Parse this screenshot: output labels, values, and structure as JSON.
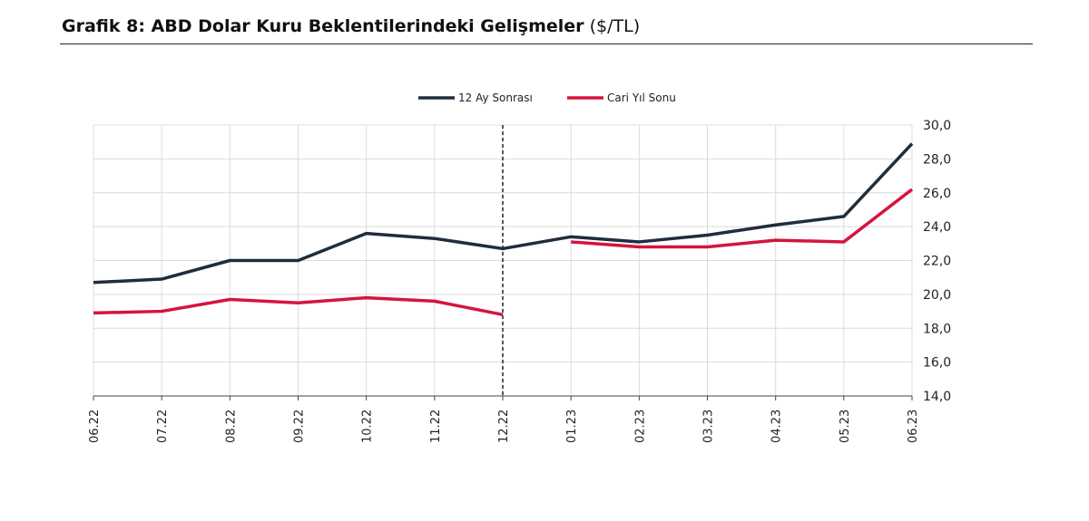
{
  "title_bold": "Grafik 8: ABD Dolar Kuru Beklentilerindeki Gelişmeler",
  "title_unit": " ($/TL)",
  "chart_data": {
    "type": "line",
    "title": "Grafik 8: ABD Dolar Kuru Beklentilerindeki Gelişmeler ($/TL)",
    "categories": [
      "06.22",
      "07.22",
      "08.22",
      "09.22",
      "10.22",
      "11.22",
      "12.22",
      "01.23",
      "02.23",
      "03.23",
      "04.23",
      "05.23",
      "06.23"
    ],
    "series": [
      {
        "name": "12 Ay Sonrası",
        "color": "#1f2d3d",
        "values": [
          20.7,
          20.9,
          22.0,
          22.0,
          23.6,
          23.3,
          22.7,
          23.4,
          23.1,
          23.5,
          24.1,
          24.6,
          28.9
        ]
      },
      {
        "name": "Cari Yıl Sonu",
        "color": "#d5143c",
        "values": [
          18.9,
          19.0,
          19.7,
          19.5,
          19.8,
          19.6,
          18.8,
          23.1,
          22.8,
          22.8,
          23.2,
          23.1,
          26.2
        ]
      }
    ],
    "break_after_index": 6,
    "ylim": [
      14,
      30
    ],
    "yticks": [
      "14,0",
      "16,0",
      "18,0",
      "20,0",
      "22,0",
      "24,0",
      "26,0",
      "28,0",
      "30,0"
    ],
    "ytick_values": [
      14,
      16,
      18,
      20,
      22,
      24,
      26,
      28,
      30
    ],
    "y_axis_side": "right",
    "legend": "top-center",
    "grid": true
  }
}
